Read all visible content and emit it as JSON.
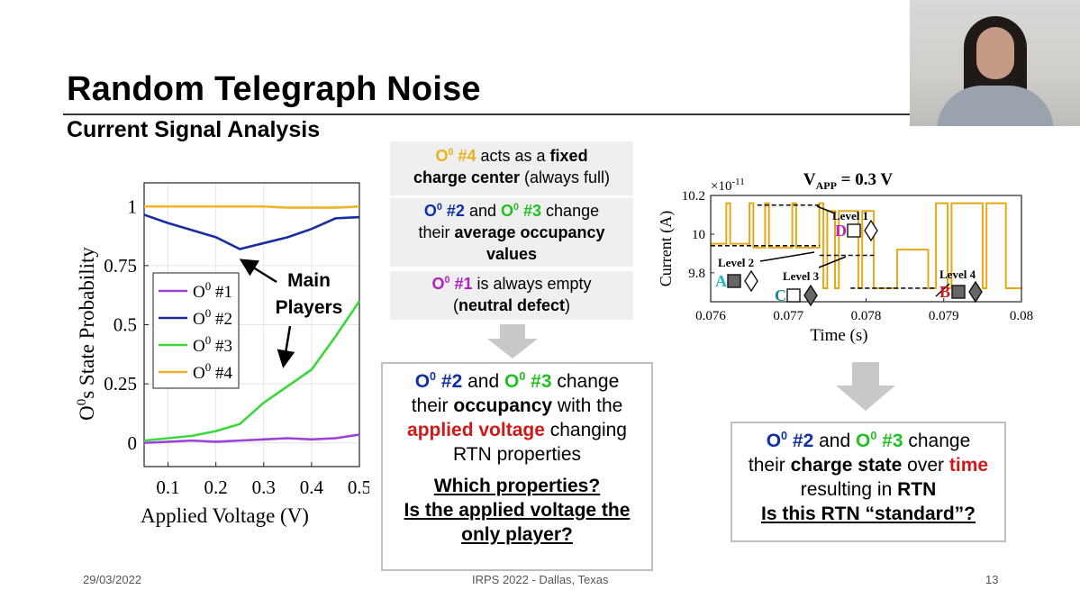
{
  "slide": {
    "title": "Random Telegraph Noise",
    "subtitle": "Current Signal Analysis",
    "footer_date": "29/03/2022",
    "footer_center": "IRPS 2022 -  Dallas, Texas",
    "page_number": "13"
  },
  "boxes": {
    "b1": {
      "a": "O",
      "a_sup": "0",
      "b": " #4",
      "c": " acts as a ",
      "d": "fixed",
      "e": "charge center",
      "f": " (always full)"
    },
    "b2": {
      "a": "O",
      "a_sup": "0",
      "b": " #2",
      "c": " and ",
      "d": "O",
      "d_sup": "0",
      "e": " #3",
      "f": " change",
      "g": "their ",
      "h": "average occupancy",
      "i": "values"
    },
    "b3": {
      "a": "O",
      "a_sup": "0",
      "b": " #1",
      "c": " is always empty",
      "d": "(",
      "e": "neutral defect",
      "f": ")"
    },
    "center": {
      "a": "O",
      "a_sup": "0",
      "b": " #2",
      "c": " and ",
      "d": "O",
      "d_sup": "0",
      "e": " #3",
      "f": " change",
      "g": "their ",
      "h": "occupancy",
      "i": " with the",
      "j": "applied voltage",
      "k": " changing",
      "l": "RTN properties",
      "m": "Which properties?",
      "n": "Is the applied voltage the",
      "o": "only player?"
    },
    "right": {
      "a": "O",
      "a_sup": "0",
      "b": " #2",
      "c": " and ",
      "d": "O",
      "d_sup": "0",
      "e": " #3",
      "f": " change",
      "g": "their ",
      "h": "charge state",
      "i": " over ",
      "j": "time",
      "k": "resulting in ",
      "l": "RTN",
      "m": "Is this RTN “standard”?"
    }
  },
  "colors": {
    "yellow": "#e8b21a",
    "blue": "#1030a8",
    "green": "#22c022",
    "purple": "#b020c0",
    "red": "#d01818",
    "grey_arrow": "#c8c8c8"
  },
  "chart_data": [
    {
      "type": "line",
      "xlabel": "Applied Voltage (V)",
      "ylabel_main": "O",
      "ylabel_sup": "0",
      "ylabel_rest": "s State Probability",
      "xlim": [
        0.05,
        0.5
      ],
      "ylim": [
        -0.1,
        1.1
      ],
      "xticks": [
        "0.1",
        "0.2",
        "0.3",
        "0.4",
        "0.5"
      ],
      "xtick_values": [
        0.1,
        0.2,
        0.3,
        0.4,
        0.5
      ],
      "yticks": [
        "0",
        "0.25",
        "0.5",
        "0.75",
        "1"
      ],
      "ytick_values": [
        0,
        0.25,
        0.5,
        0.75,
        1
      ],
      "x": [
        0.05,
        0.1,
        0.15,
        0.2,
        0.25,
        0.3,
        0.35,
        0.4,
        0.45,
        0.5
      ],
      "series": [
        {
          "name": "O0 #1",
          "legend_main": "O",
          "legend_sup": "0",
          "legend_rest": " #1",
          "color": "#9c42d8",
          "values": [
            0.0,
            0.005,
            0.01,
            0.005,
            0.01,
            0.015,
            0.02,
            0.015,
            0.02,
            0.035
          ]
        },
        {
          "name": "O0 #2",
          "legend_main": "O",
          "legend_sup": "0",
          "legend_rest": " #2",
          "color": "#1a2ca0",
          "values": [
            0.965,
            0.93,
            0.9,
            0.87,
            0.82,
            0.845,
            0.87,
            0.905,
            0.95,
            0.955
          ]
        },
        {
          "name": "O0 #3",
          "legend_main": "O",
          "legend_sup": "0",
          "legend_rest": " #3",
          "color": "#3ad83a",
          "values": [
            0.01,
            0.02,
            0.03,
            0.05,
            0.08,
            0.17,
            0.24,
            0.31,
            0.45,
            0.6
          ]
        },
        {
          "name": "O0 #4",
          "legend_main": "O",
          "legend_sup": "0",
          "legend_rest": " #4",
          "color": "#f0b429",
          "values": [
            1.0,
            1.0,
            1.0,
            1.0,
            1.0,
            1.0,
            0.995,
            0.995,
            0.995,
            1.0
          ]
        }
      ],
      "annotation": {
        "line1": "Main",
        "line2": "Players"
      },
      "legend_position": "middle-left",
      "grid": true
    },
    {
      "type": "line",
      "title_main": "V",
      "title_sub": "APP",
      "title_rest": " = 0.3 V",
      "xlabel": "Time (s)",
      "ylabel": "Current (A)",
      "y_multiplier_base": "×10",
      "y_multiplier_exp": "-11",
      "xlim": [
        0.076,
        0.08
      ],
      "ylim": [
        9.65,
        10.2
      ],
      "xticks": [
        "0.076",
        "0.077",
        "0.078",
        "0.079",
        "0.08"
      ],
      "xtick_values": [
        0.076,
        0.077,
        0.078,
        0.079,
        0.08
      ],
      "yticks": [
        "9.8",
        "10",
        "10.2"
      ],
      "ytick_values": [
        9.8,
        10.0,
        10.2
      ],
      "color": "#e6a817",
      "levels": [
        {
          "label": "Level 1",
          "value": 10.15
        },
        {
          "label": "Level 2",
          "value": 9.94
        },
        {
          "label": "Level 3",
          "value": 9.89
        },
        {
          "label": "Level 4",
          "value": 9.72
        }
      ],
      "states": [
        {
          "letter": "A",
          "color": "#18b8c8"
        },
        {
          "letter": "B",
          "color": "#d01818"
        },
        {
          "letter": "C",
          "color": "#1a8a8a"
        },
        {
          "letter": "D",
          "color": "#c020c0"
        }
      ],
      "signal_x": [
        0.076,
        0.0762,
        0.0762,
        0.07625,
        0.07625,
        0.0765,
        0.0765,
        0.07655,
        0.07655,
        0.0767,
        0.0767,
        0.07675,
        0.07675,
        0.07705,
        0.07705,
        0.0771,
        0.0771,
        0.0774,
        0.0774,
        0.07745,
        0.07745,
        0.0775,
        0.0775,
        0.0776,
        0.0776,
        0.07765,
        0.07765,
        0.0779,
        0.0779,
        0.07795,
        0.07795,
        0.0781,
        0.0781,
        0.07815,
        0.07815,
        0.0784,
        0.0784,
        0.0788,
        0.0788,
        0.0789,
        0.0789,
        0.07905,
        0.07905,
        0.0791,
        0.0791,
        0.0795,
        0.0795,
        0.07955,
        0.07955,
        0.0798,
        0.0798,
        0.07985,
        0.07985,
        0.08
      ],
      "signal_y": [
        9.95,
        9.95,
        10.16,
        10.16,
        9.95,
        9.95,
        10.16,
        10.16,
        9.93,
        9.93,
        10.16,
        10.16,
        9.93,
        9.93,
        10.16,
        10.16,
        9.93,
        9.93,
        10.16,
        10.16,
        9.72,
        9.72,
        10.12,
        10.12,
        9.72,
        9.72,
        10.12,
        10.12,
        9.72,
        9.72,
        10.12,
        10.12,
        9.72,
        9.72,
        9.72,
        9.72,
        9.92,
        9.92,
        9.72,
        9.72,
        10.16,
        10.16,
        9.72,
        9.72,
        10.16,
        10.16,
        9.72,
        9.72,
        10.16,
        10.16,
        9.72,
        9.72,
        9.72,
        9.72
      ]
    }
  ]
}
